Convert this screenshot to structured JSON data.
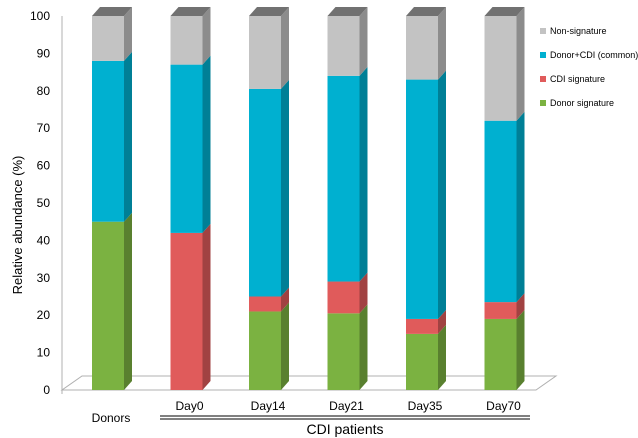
{
  "chart_data": {
    "type": "bar",
    "stacked": true,
    "three_d": true,
    "title": "",
    "xlabel": "",
    "ylabel": "Relative abundance (%)",
    "ylim": [
      0,
      100
    ],
    "yticks": [
      0,
      10,
      20,
      30,
      40,
      50,
      60,
      70,
      80,
      90,
      100
    ],
    "grid": false,
    "legend_position": "right",
    "categories": [
      "Donors",
      "Day0",
      "Day14",
      "Day21",
      "Day35",
      "Day70"
    ],
    "group_label": "CDI patients",
    "group_members": [
      "Day0",
      "Day14",
      "Day21",
      "Day35",
      "Day70"
    ],
    "series": [
      {
        "name": "Donor signature",
        "color": "#7bb241",
        "values": [
          45,
          0,
          21,
          20.5,
          15,
          19
        ]
      },
      {
        "name": "CDI signature",
        "color": "#e05b5b",
        "values": [
          0,
          42,
          4,
          8.5,
          4,
          4.5
        ]
      },
      {
        "name": "Donor+CDI (common)",
        "color": "#00b0d0",
        "values": [
          43,
          45,
          55.5,
          55,
          64,
          48.5
        ]
      },
      {
        "name": "Non-signature",
        "color": "#c3c3c3",
        "values": [
          12,
          13,
          19.5,
          16,
          17,
          28
        ]
      }
    ],
    "legend_order": [
      "Non-signature",
      "Donor+CDI (common)",
      "CDI signature",
      "Donor signature"
    ]
  }
}
